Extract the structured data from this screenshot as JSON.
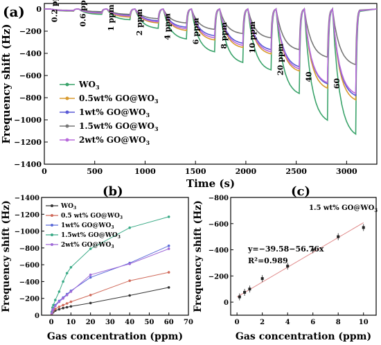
{
  "figure": {
    "panels": {
      "a": "(a)",
      "b": "(b)",
      "c": "(c)"
    }
  },
  "chart_data": [
    {
      "panel": "(a)",
      "type": "line",
      "xlabel": "Time (s)",
      "ylabel": "Frequency shift (Hz)",
      "xlim": [
        0,
        3300
      ],
      "ylim": [
        -1400,
        50
      ],
      "xticks": [
        0,
        500,
        1000,
        1500,
        2000,
        2500,
        3000
      ],
      "yticks": [
        0,
        -200,
        -400,
        -600,
        -800,
        -1000,
        -1200,
        -1400
      ],
      "legend_position": "middle-left",
      "series": [
        {
          "name": "WO",
          "name_sub": "3",
          "color": "#3aa36a",
          "marker": "circle"
        },
        {
          "name": "0.5wt% GO@WO",
          "name_sub": "3",
          "color": "#d89a2e",
          "marker": "circle"
        },
        {
          "name": "1wt% GO@WO",
          "name_sub": "3",
          "color": "#5a5ad6",
          "marker": "circle"
        },
        {
          "name": "1.5wt% GO@WO",
          "name_sub": "3",
          "color": "#777777",
          "marker": "circle"
        },
        {
          "name": "2wt% GO@WO",
          "name_sub": "3",
          "color": "#b86adb",
          "marker": "circle"
        }
      ],
      "events": [
        {
          "label": "0.2 ppm",
          "t_start": 60,
          "t_end": 290,
          "shifts": [
            -20,
            -18,
            -16,
            -12,
            -14
          ]
        },
        {
          "label": "0.6 ppm",
          "t_start": 340,
          "t_end": 570,
          "shifts": [
            -50,
            -40,
            -35,
            -25,
            -38
          ]
        },
        {
          "label": "1 ppm",
          "t_start": 620,
          "t_end": 850,
          "shifts": [
            -100,
            -75,
            -60,
            -50,
            -65
          ]
        },
        {
          "label": "2 ppm",
          "t_start": 900,
          "t_end": 1130,
          "shifts": [
            -180,
            -130,
            -110,
            -90,
            -120
          ]
        },
        {
          "label": "4 ppm",
          "t_start": 1180,
          "t_end": 1410,
          "shifts": [
            -280,
            -200,
            -170,
            -130,
            -185
          ]
        },
        {
          "label": "6 ppm",
          "t_start": 1460,
          "t_end": 1690,
          "shifts": [
            -400,
            -290,
            -250,
            -190,
            -270
          ]
        },
        {
          "label": "8 ppm",
          "t_start": 1740,
          "t_end": 1970,
          "shifts": [
            -500,
            -360,
            -320,
            -230,
            -340
          ]
        },
        {
          "label": "10 ppm",
          "t_start": 2020,
          "t_end": 2250,
          "shifts": [
            -570,
            -420,
            -380,
            -270,
            -400
          ]
        },
        {
          "label": "20 ppm",
          "t_start": 2300,
          "t_end": 2530,
          "shifts": [
            -790,
            -580,
            -540,
            -380,
            -560
          ]
        },
        {
          "label": "40",
          "t_start": 2580,
          "t_end": 2810,
          "shifts": [
            -1040,
            -740,
            -700,
            -450,
            -690
          ]
        },
        {
          "label": "60",
          "t_start": 2860,
          "t_end": 3090,
          "shifts": [
            -1170,
            -850,
            -810,
            -520,
            -790
          ]
        }
      ]
    },
    {
      "panel": "(b)",
      "type": "line",
      "xlabel": "Gas concentration (ppm)",
      "ylabel": "Frequency shift (Hz)",
      "xlim": [
        -5,
        70
      ],
      "ylim": [
        0,
        -1400
      ],
      "xticks": [
        0,
        10,
        20,
        30,
        40,
        50,
        60,
        70
      ],
      "yticks": [
        0,
        -200,
        -400,
        -600,
        -800,
        -1000,
        -1200,
        -1400
      ],
      "legend_position": "top-left",
      "x": [
        0.2,
        0.6,
        1,
        2,
        4,
        6,
        8,
        10,
        20,
        40,
        60
      ],
      "series": [
        {
          "name": "WO",
          "name_sub": "3",
          "color": "#333333",
          "values": [
            -15,
            -30,
            -40,
            -55,
            -70,
            -85,
            -95,
            -105,
            -145,
            -235,
            -330
          ]
        },
        {
          "name": "0.5 wt% GO@WO",
          "name_sub": "3",
          "color": "#d06a5a",
          "values": [
            -20,
            -40,
            -55,
            -75,
            -100,
            -120,
            -140,
            -160,
            -240,
            -410,
            -510
          ]
        },
        {
          "name": "1wt% GO@WO",
          "name_sub": "3",
          "color": "#5a6ad8",
          "values": [
            -30,
            -60,
            -80,
            -120,
            -170,
            -210,
            -250,
            -290,
            -450,
            -620,
            -825
          ]
        },
        {
          "name": "1.5wt% GO@WO",
          "name_sub": "3",
          "color": "#3aaa86",
          "values": [
            -40,
            -90,
            -120,
            -180,
            -280,
            -400,
            -500,
            -570,
            -790,
            -1040,
            -1170
          ]
        },
        {
          "name": "2wt% GO@WO",
          "name_sub": "3",
          "color": "#a06ad8",
          "values": [
            -25,
            -55,
            -75,
            -110,
            -160,
            -200,
            -240,
            -280,
            -480,
            -610,
            -790
          ]
        }
      ]
    },
    {
      "panel": "(c)",
      "type": "scatter",
      "xlabel": "Gas concentration (ppm)",
      "ylabel": "Frequency shift (Hz)",
      "xlim": [
        -0.5,
        11
      ],
      "ylim": [
        100,
        -800
      ],
      "xticks": [
        0,
        2,
        4,
        6,
        8,
        10
      ],
      "yticks": [
        0,
        -200,
        -400,
        -600,
        -800
      ],
      "annotation": "1.5 wt% GO@WO",
      "annotation_sub": "3",
      "equation": "y=−39.58−56.76x",
      "r2": "R²=0.989",
      "x": [
        0.2,
        0.6,
        1,
        2,
        4,
        6,
        8,
        10
      ],
      "values": [
        -40,
        -75,
        -100,
        -180,
        -275,
        -400,
        -500,
        -570
      ],
      "fit_color": "#e08a8a",
      "point_color": "#222222"
    }
  ]
}
